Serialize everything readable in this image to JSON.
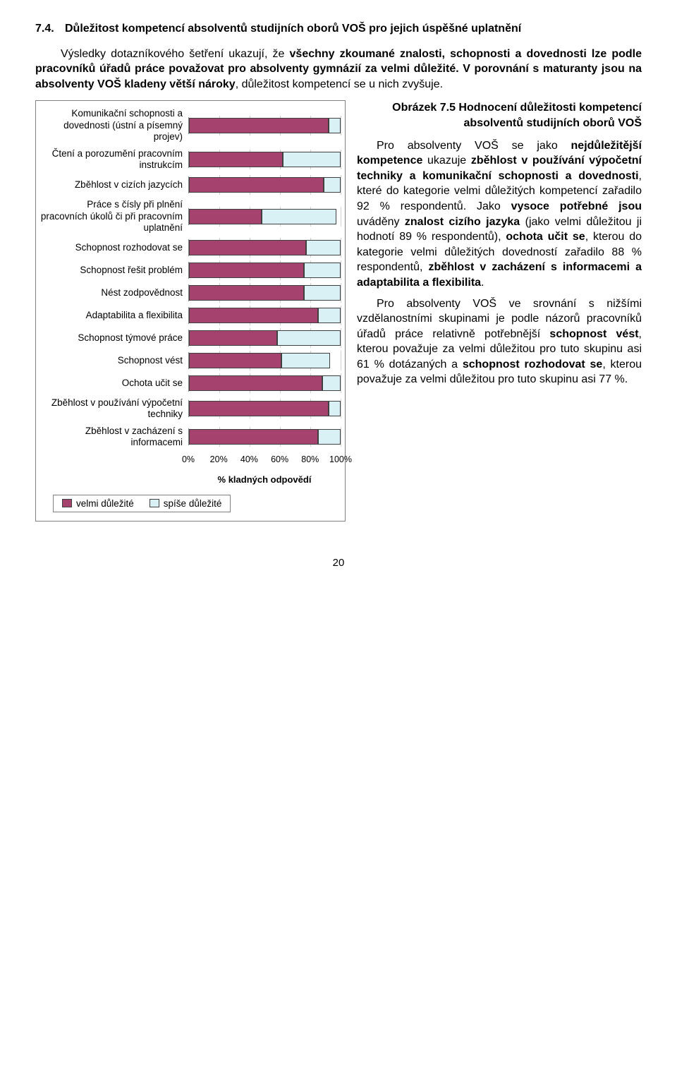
{
  "heading_num": "7.4.",
  "heading_text": "Důležitost kompetencí absolventů studijních oborů VOŠ pro jejich úspěšné uplatnění",
  "intro_html": "Výsledky dotazníkového šetření ukazují, že <b>všechny zkoumané znalosti, schopnosti a dovednosti lze podle pracovníků úřadů práce považovat pro absolventy gymnázií za velmi důležité. V porovnání s maturanty jsou na absolventy VOŠ kladeny větší nároky</b>, důležitost kompetencí se u nich zvyšuje.",
  "caption": "Obrázek 7.5 Hodnocení důležitosti kompetencí absolventů studijních oborů VOŠ",
  "para1_html": "Pro absolventy VOŠ se jako <b>nejdůležitější kompetence</b> ukazuje <b>zběhlost v používání výpočetní techniky a komunikační schopnosti a dovednosti</b>, které do kategorie velmi důležitých kompetencí zařadilo 92 % respondentů. Jako <b>vysoce potřebné jsou</b> uváděny <b>znalost cizího jazyka</b> (jako velmi důležitou ji hodnotí 89 % respondentů), <b>ochota učit se</b>, kterou do kategorie velmi důležitých dovedností zařadilo 88 % respondentů, <b>zběhlost v zacházení s informacemi a adaptabilita a flexibilita</b>.",
  "para2_html": "Pro absolventy VOŠ ve srovnání s nižšími vzdělanostními skupinami je podle názorů pracovníků úřadů práce relativně potřebnější <b>schopnost vést</b>, kterou považuje za velmi důležitou pro tuto skupinu asi 61 % dotázaných a <b>schopnost rozhodovat se</b>, kterou považuje za velmi důležitou pro tuto skupinu asi 77 %.",
  "chart": {
    "type": "bar",
    "colors": {
      "seg1": "#a6426e",
      "seg2": "#d9f0f5",
      "border": "#404040",
      "grid": "#d0d0d0",
      "bg": "#ffffff"
    },
    "xlim": [
      0,
      100
    ],
    "ticks": [
      0,
      20,
      40,
      60,
      80,
      100
    ],
    "tick_labels": [
      "0%",
      "20%",
      "40%",
      "60%",
      "80%",
      "100%"
    ],
    "axis_title": "% kladných odpovědí",
    "legend": [
      {
        "label": "velmi důležité",
        "color": "#a6426e"
      },
      {
        "label": "spíše důležité",
        "color": "#d9f0f5"
      }
    ],
    "series": [
      {
        "label": "Komunikační schopnosti a dovednosti (ústní a písemný projev)",
        "v1": 92,
        "v2": 8
      },
      {
        "label": "Čtení a porozumění pracovním instrukcím",
        "v1": 62,
        "v2": 38
      },
      {
        "label": "Zběhlost v cizích jazycích",
        "v1": 89,
        "v2": 11
      },
      {
        "label": "Práce s čísly při plnění pracovních úkolů či při pracovním uplatnění",
        "v1": 48,
        "v2": 49
      },
      {
        "label": "Schopnost rozhodovat se",
        "v1": 77,
        "v2": 23
      },
      {
        "label": "Schopnost řešit problém",
        "v1": 76,
        "v2": 24
      },
      {
        "label": "Nést zodpovědnost",
        "v1": 76,
        "v2": 24
      },
      {
        "label": "Adaptabilita a flexibilita",
        "v1": 85,
        "v2": 15
      },
      {
        "label": "Schopnost týmové práce",
        "v1": 58,
        "v2": 42
      },
      {
        "label": "Schopnost vést",
        "v1": 61,
        "v2": 32
      },
      {
        "label": "Ochota učit se",
        "v1": 88,
        "v2": 12
      },
      {
        "label": "Zběhlost v používání výpočetní techniky",
        "v1": 92,
        "v2": 8
      },
      {
        "label": "Zběhlost v zacházení s informacemi",
        "v1": 85,
        "v2": 15
      }
    ]
  },
  "page_number": "20"
}
